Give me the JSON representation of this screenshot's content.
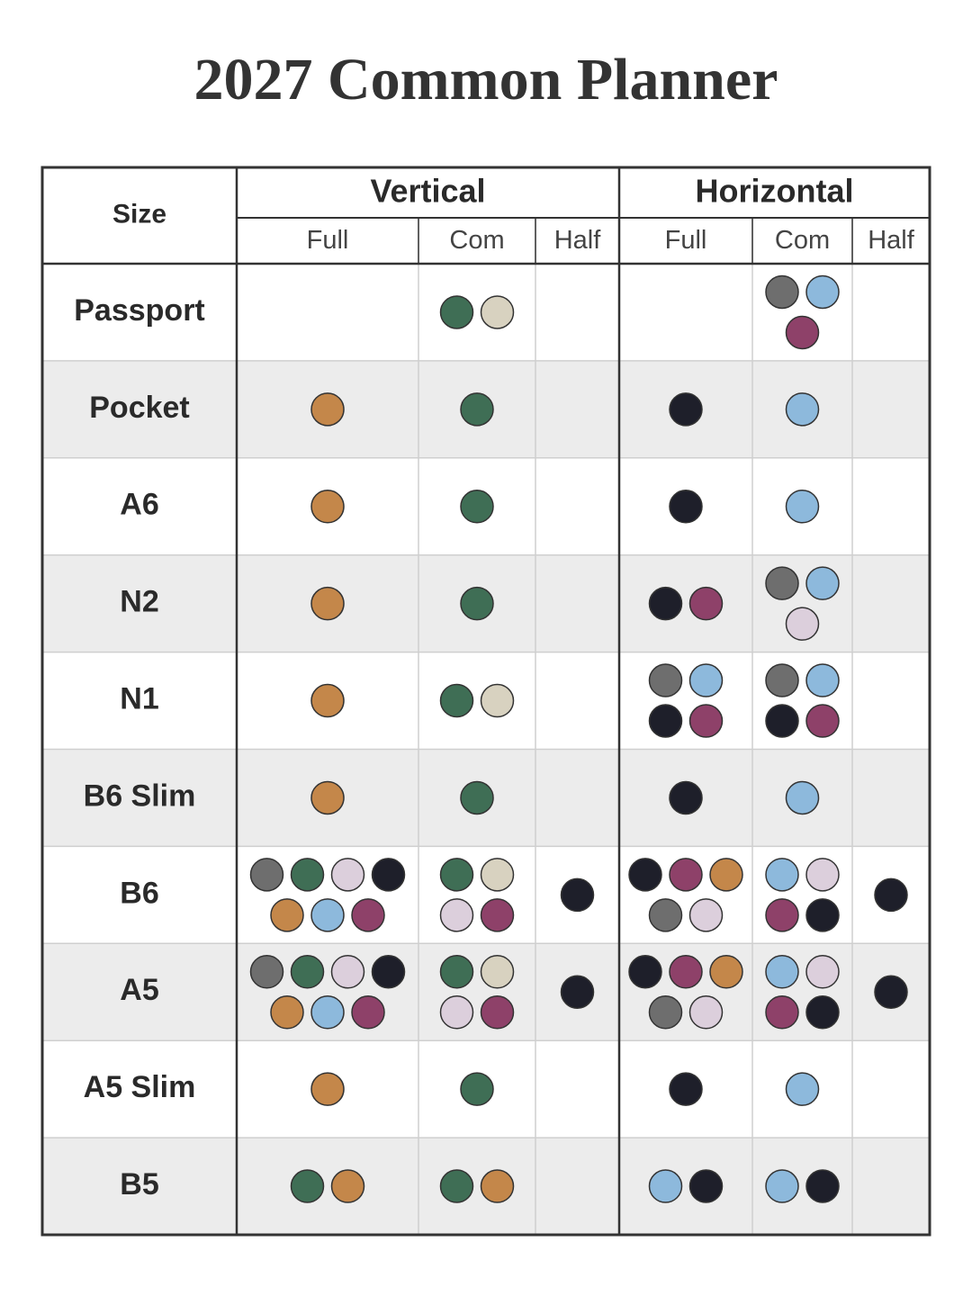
{
  "title": "2027 Common Planner",
  "table": {
    "size_header": "Size",
    "groups": [
      {
        "label": "Vertical",
        "columns": [
          "Full",
          "Com",
          "Half"
        ]
      },
      {
        "label": "Horizontal",
        "columns": [
          "Full",
          "Com",
          "Half"
        ]
      }
    ],
    "rows": [
      {
        "size": "Passport",
        "cells": [
          [],
          [
            "#3f6e55",
            "#d8d2c0"
          ],
          [],
          [],
          [
            "#6e6e6e",
            "#8db9dc",
            "#8e4169"
          ],
          []
        ]
      },
      {
        "size": "Pocket",
        "cells": [
          [
            "#c4874a"
          ],
          [
            "#3f6e55"
          ],
          [],
          [
            "#1e1f2a"
          ],
          [
            "#8db9dc"
          ],
          []
        ]
      },
      {
        "size": "A6",
        "cells": [
          [
            "#c4874a"
          ],
          [
            "#3f6e55"
          ],
          [],
          [
            "#1e1f2a"
          ],
          [
            "#8db9dc"
          ],
          []
        ]
      },
      {
        "size": "N2",
        "cells": [
          [
            "#c4874a"
          ],
          [
            "#3f6e55"
          ],
          [],
          [
            "#1e1f2a",
            "#8e4169"
          ],
          [
            "#6e6e6e",
            "#8db9dc",
            "#dccfdc"
          ],
          []
        ]
      },
      {
        "size": "N1",
        "cells": [
          [
            "#c4874a"
          ],
          [
            "#3f6e55",
            "#d8d2c0"
          ],
          [],
          [
            "#6e6e6e",
            "#8db9dc",
            "#1e1f2a",
            "#8e4169"
          ],
          [
            "#6e6e6e",
            "#8db9dc",
            "#1e1f2a",
            "#8e4169"
          ],
          []
        ]
      },
      {
        "size": "B6 Slim",
        "cells": [
          [
            "#c4874a"
          ],
          [
            "#3f6e55"
          ],
          [],
          [
            "#1e1f2a"
          ],
          [
            "#8db9dc"
          ],
          []
        ]
      },
      {
        "size": "B6",
        "cells": [
          [
            "#6e6e6e",
            "#3f6e55",
            "#dccfdc",
            "#1e1f2a",
            "#c4874a",
            "#8db9dc",
            "#8e4169"
          ],
          [
            "#3f6e55",
            "#d8d2c0",
            "#dccfdc",
            "#8e4169"
          ],
          [
            "#1e1f2a"
          ],
          [
            "#1e1f2a",
            "#8e4169",
            "#c4874a",
            "#6e6e6e",
            "#dccfdc"
          ],
          [
            "#8db9dc",
            "#dccfdc",
            "#8e4169",
            "#1e1f2a"
          ],
          [
            "#1e1f2a"
          ]
        ]
      },
      {
        "size": "A5",
        "cells": [
          [
            "#6e6e6e",
            "#3f6e55",
            "#dccfdc",
            "#1e1f2a",
            "#c4874a",
            "#8db9dc",
            "#8e4169"
          ],
          [
            "#3f6e55",
            "#d8d2c0",
            "#dccfdc",
            "#8e4169"
          ],
          [
            "#1e1f2a"
          ],
          [
            "#1e1f2a",
            "#8e4169",
            "#c4874a",
            "#6e6e6e",
            "#dccfdc"
          ],
          [
            "#8db9dc",
            "#dccfdc",
            "#8e4169",
            "#1e1f2a"
          ],
          [
            "#1e1f2a"
          ]
        ]
      },
      {
        "size": "A5 Slim",
        "cells": [
          [
            "#c4874a"
          ],
          [
            "#3f6e55"
          ],
          [],
          [
            "#1e1f2a"
          ],
          [
            "#8db9dc"
          ],
          []
        ]
      },
      {
        "size": "B5",
        "cells": [
          [
            "#3f6e55",
            "#c4874a"
          ],
          [
            "#3f6e55",
            "#c4874a"
          ],
          [],
          [
            "#8db9dc",
            "#1e1f2a"
          ],
          [
            "#8db9dc",
            "#1e1f2a"
          ],
          []
        ]
      }
    ],
    "stripe_color": "#ececec"
  }
}
